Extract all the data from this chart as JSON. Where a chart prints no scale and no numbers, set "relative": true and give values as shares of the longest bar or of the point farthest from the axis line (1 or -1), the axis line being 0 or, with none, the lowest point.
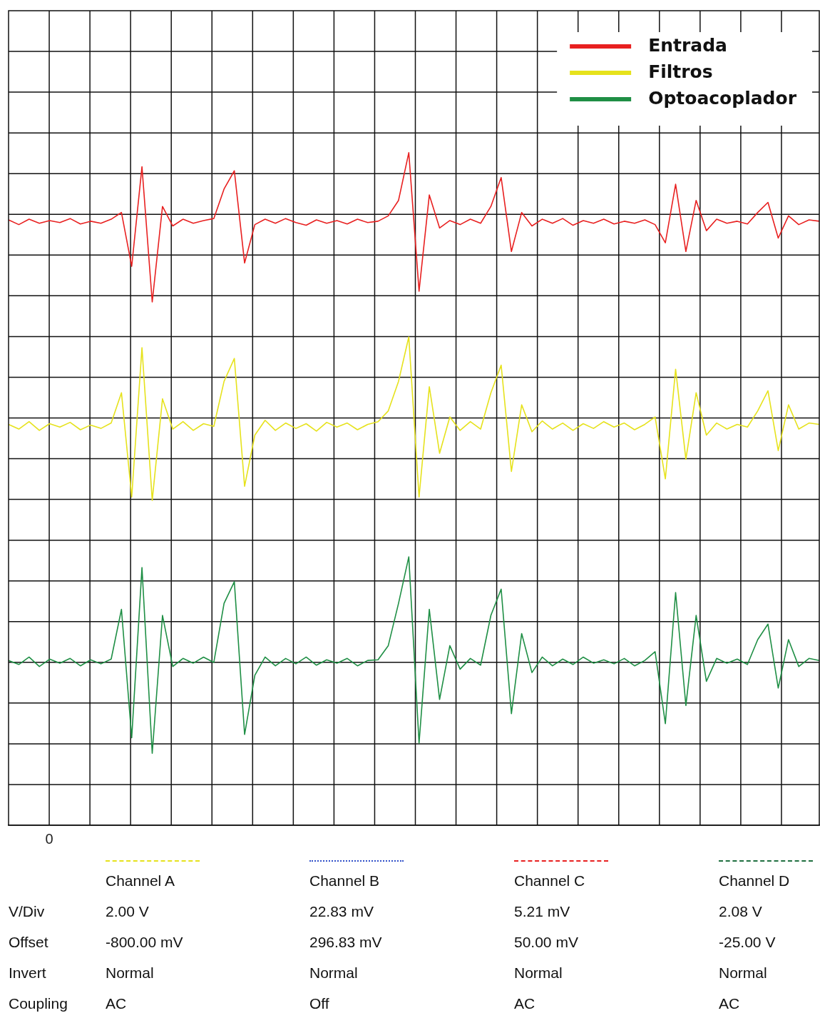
{
  "chart_data": {
    "type": "line",
    "relative": true,
    "grid": true,
    "legend": "top right",
    "marker": "none",
    "line_style": "solid",
    "categories": [
      null,
      null,
      null,
      null,
      null,
      null,
      null,
      null,
      null,
      null,
      null,
      null,
      null,
      null,
      null,
      null,
      null,
      null,
      null,
      null,
      null,
      null,
      null,
      null,
      null,
      null,
      null,
      null,
      null,
      null,
      null,
      null,
      null,
      null,
      null,
      null,
      null,
      null,
      null,
      null,
      null,
      null,
      null,
      null,
      null,
      null,
      null,
      null,
      null,
      null,
      null,
      null,
      null,
      null,
      null,
      null,
      null,
      null,
      null,
      null,
      null,
      null,
      null,
      null,
      null,
      null,
      null,
      null,
      null,
      null,
      null,
      null,
      null,
      null,
      null,
      null,
      null,
      null,
      null,
      null
    ],
    "series": [
      {
        "name": "Entrada",
        "color": "#e82020",
        "values": [
          0.9,
          0.893,
          0.901,
          0.895,
          0.899,
          0.896,
          0.902,
          0.894,
          0.898,
          0.895,
          0.901,
          0.911,
          0.831,
          0.979,
          0.778,
          0.92,
          0.891,
          0.901,
          0.895,
          0.899,
          0.902,
          0.946,
          0.973,
          0.836,
          0.893,
          0.901,
          0.895,
          0.902,
          0.896,
          0.892,
          0.9,
          0.895,
          0.899,
          0.894,
          0.901,
          0.896,
          0.898,
          0.906,
          0.929,
          1.0,
          0.794,
          0.937,
          0.888,
          0.899,
          0.893,
          0.901,
          0.895,
          0.92,
          0.963,
          0.853,
          0.911,
          0.891,
          0.901,
          0.895,
          0.902,
          0.892,
          0.899,
          0.895,
          0.901,
          0.894,
          0.898,
          0.895,
          0.9,
          0.893,
          0.866,
          0.953,
          0.853,
          0.929,
          0.884,
          0.901,
          0.895,
          0.898,
          0.894,
          0.911,
          0.926,
          0.873,
          0.906,
          0.893,
          0.9,
          0.898
        ]
      },
      {
        "name": "Filtros",
        "color": "#e6e21c",
        "values": [
          0.596,
          0.589,
          0.6,
          0.587,
          0.597,
          0.592,
          0.599,
          0.588,
          0.595,
          0.59,
          0.598,
          0.643,
          0.488,
          0.71,
          0.483,
          0.634,
          0.589,
          0.6,
          0.587,
          0.597,
          0.593,
          0.66,
          0.694,
          0.504,
          0.58,
          0.602,
          0.587,
          0.598,
          0.59,
          0.597,
          0.586,
          0.599,
          0.592,
          0.598,
          0.588,
          0.596,
          0.6,
          0.616,
          0.66,
          0.726,
          0.488,
          0.652,
          0.553,
          0.607,
          0.587,
          0.6,
          0.589,
          0.643,
          0.684,
          0.526,
          0.625,
          0.585,
          0.601,
          0.589,
          0.598,
          0.587,
          0.597,
          0.59,
          0.6,
          0.592,
          0.598,
          0.588,
          0.596,
          0.607,
          0.515,
          0.678,
          0.544,
          0.643,
          0.58,
          0.598,
          0.589,
          0.596,
          0.592,
          0.616,
          0.646,
          0.557,
          0.625,
          0.589,
          0.598,
          0.596
        ]
      },
      {
        "name": "Optoacoplador",
        "color": "#1f8f45",
        "values": [
          0.245,
          0.239,
          0.25,
          0.236,
          0.247,
          0.241,
          0.248,
          0.237,
          0.246,
          0.24,
          0.247,
          0.321,
          0.13,
          0.383,
          0.107,
          0.312,
          0.236,
          0.248,
          0.241,
          0.25,
          0.242,
          0.33,
          0.362,
          0.135,
          0.223,
          0.25,
          0.237,
          0.248,
          0.24,
          0.25,
          0.238,
          0.246,
          0.241,
          0.248,
          0.237,
          0.245,
          0.246,
          0.267,
          0.33,
          0.399,
          0.122,
          0.321,
          0.187,
          0.267,
          0.232,
          0.248,
          0.238,
          0.312,
          0.351,
          0.166,
          0.285,
          0.227,
          0.25,
          0.237,
          0.247,
          0.239,
          0.25,
          0.241,
          0.246,
          0.24,
          0.248,
          0.237,
          0.245,
          0.258,
          0.151,
          0.346,
          0.178,
          0.312,
          0.214,
          0.248,
          0.241,
          0.247,
          0.239,
          0.276,
          0.299,
          0.204,
          0.276,
          0.236,
          0.248,
          0.245
        ]
      }
    ],
    "annotations": [
      "0",
      "Channel A",
      "Channel B",
      "Channel C",
      "Channel D",
      "V/Div",
      "2.00 V",
      "22.83 mV",
      "5.21 mV",
      "2.08 V",
      "Offset",
      "-800.00 mV",
      "296.83 mV",
      "50.00 mV",
      "-25.00 V",
      "Invert",
      "Normal",
      "Normal",
      "Normal",
      "Normal",
      "Coupling",
      "AC",
      "Off",
      "AC",
      "AC"
    ]
  }
}
